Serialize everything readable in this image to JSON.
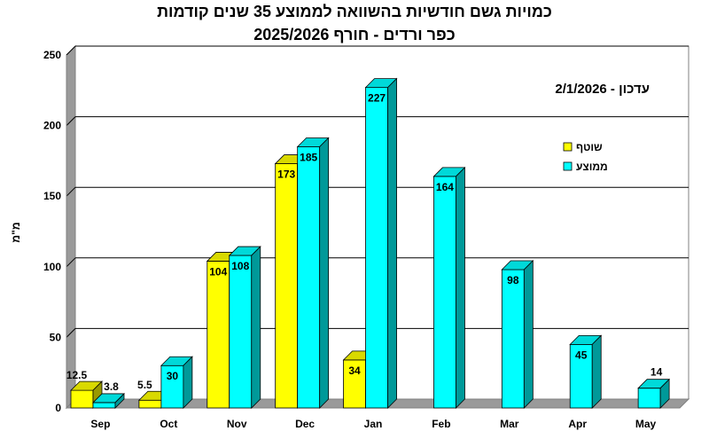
{
  "chart_data": {
    "type": "bar",
    "title": "כמויות גשם חודשיות בהשוואה לממוצע 35 שנים קודמות",
    "subtitle": "כפר ורדים - חורף 2025/2026",
    "update_note": "עדכון - 2/1/2026",
    "ylabel": "מ\"מ",
    "xlabel": "",
    "ylim": [
      0,
      250
    ],
    "yticks": [
      0,
      50,
      100,
      150,
      200,
      250
    ],
    "grid": true,
    "legend_position": "right",
    "categories": [
      "Sep",
      "Oct",
      "Nov",
      "Dec",
      "Jan",
      "Feb",
      "Mar",
      "Apr",
      "May"
    ],
    "series": [
      {
        "name": "שוטף",
        "color": "#ffff00",
        "values": [
          12.5,
          5.5,
          104,
          173,
          34,
          null,
          null,
          null,
          null
        ],
        "labels": [
          "12.5",
          "5.5",
          "104",
          "173",
          "34",
          "",
          "",
          "",
          ""
        ]
      },
      {
        "name": "ממוצע",
        "color": "#00ffff",
        "values": [
          3.8,
          30,
          108,
          185,
          227,
          164,
          98,
          45,
          14
        ],
        "labels": [
          "3.8",
          "30",
          "108",
          "185",
          "227",
          "164",
          "98",
          "45",
          "14"
        ]
      }
    ]
  }
}
